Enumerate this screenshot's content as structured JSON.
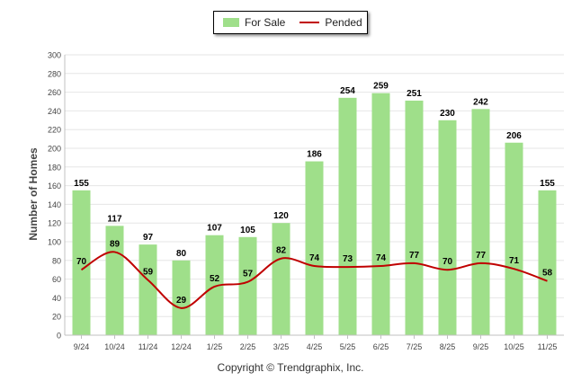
{
  "chart_data": {
    "type": "bar",
    "categories": [
      "9/24",
      "10/24",
      "11/24",
      "12/24",
      "1/25",
      "2/25",
      "3/25",
      "4/25",
      "5/25",
      "6/25",
      "7/25",
      "8/25",
      "9/25",
      "10/25",
      "11/25"
    ],
    "series": [
      {
        "name": "For Sale",
        "type": "bar",
        "color": "#9fdf8a",
        "values": [
          155,
          117,
          97,
          80,
          107,
          105,
          120,
          186,
          254,
          259,
          251,
          230,
          242,
          206,
          155
        ]
      },
      {
        "name": "Pended",
        "type": "line",
        "color": "#c00000",
        "values": [
          70,
          89,
          59,
          29,
          52,
          57,
          82,
          74,
          73,
          74,
          77,
          70,
          77,
          71,
          58
        ]
      }
    ],
    "ylabel": "Number of Homes",
    "xlabel": "",
    "ylim": [
      0,
      300
    ],
    "yticks": [
      0,
      20,
      40,
      60,
      80,
      100,
      120,
      140,
      160,
      180,
      200,
      220,
      240,
      260,
      280,
      300
    ],
    "grid": true,
    "legend": "top-center"
  },
  "legend": {
    "for_sale": "For Sale",
    "pended": "Pended"
  },
  "footer": {
    "copyright": "Copyright © Trendgraphix, Inc."
  }
}
